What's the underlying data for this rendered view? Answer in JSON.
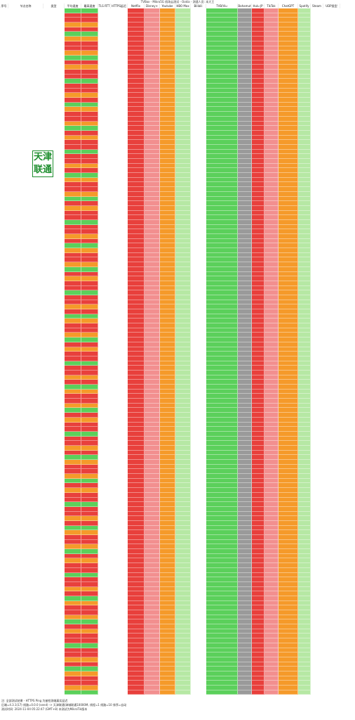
{
  "title": "TVBox - Mikro5G 机场云测试 - Ookla - 测速人员: 本大王",
  "columns": [
    "序号",
    "节点名称",
    "类型",
    "平均速度",
    "最高速度",
    "TLS RTT",
    "HTTPS延迟",
    "Netflix",
    "Disney+",
    "Youtube",
    "HBO Max",
    "Bilibili",
    "TVB/Viu",
    "Bahamut",
    "Hulu JP",
    "TikTok",
    "ChatGPT",
    "Spotify",
    "Steam",
    "UDP类型"
  ],
  "stamp_text": "天津联通",
  "footer": {
    "line1": "注: 全部测试结果 - HTTPS Ping 为被检测端真实延迟",
    "line2": "后端=4.3.1(17) 线路=0.0.0 (send) -> 天津联通/津城联通10000M, 线程=1 线路=10 排序=自动",
    "line3": "测试时间: 2024-11-04 05:22:47 (GMT+8) 本测试为MikroTik版本"
  },
  "colors": {
    "red": "#e8403c",
    "dred": "#b22a22",
    "orange": "#f59a2a",
    "green": "#5bd05b",
    "lgreen": "#b6e8a4",
    "gray": "#9a9a9a",
    "pink": "#f28f8f",
    "white": "#ffffff"
  }
}
